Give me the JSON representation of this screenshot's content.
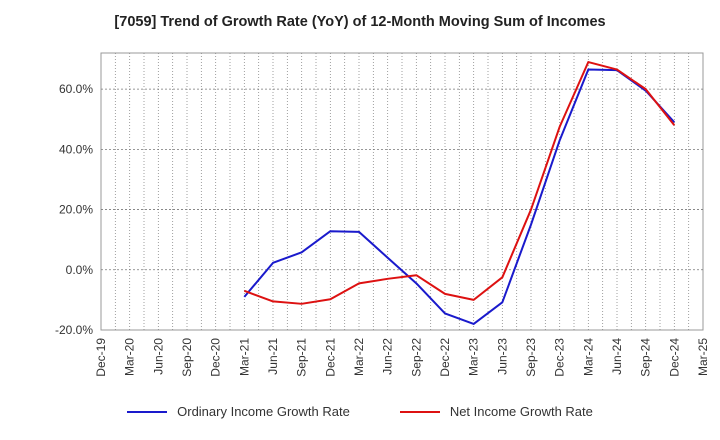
{
  "title": "[7059]  Trend of Growth Rate (YoY) of 12-Month Moving Sum of Incomes",
  "chart_data": {
    "type": "line",
    "title": "[7059]  Trend of Growth Rate (YoY) of 12-Month Moving Sum of Incomes",
    "categories": [
      "Dec-19",
      "Mar-20",
      "Jun-20",
      "Sep-20",
      "Dec-20",
      "Mar-21",
      "Jun-21",
      "Sep-21",
      "Dec-21",
      "Mar-22",
      "Jun-22",
      "Sep-22",
      "Dec-22",
      "Mar-23",
      "Jun-23",
      "Sep-23",
      "Dec-23",
      "Mar-24",
      "Jun-24",
      "Sep-24",
      "Dec-24",
      "Mar-25"
    ],
    "ylim": [
      -20,
      72
    ],
    "yticks": [
      -20,
      0,
      20,
      40,
      60
    ],
    "ytick_labels": [
      "-20.0%",
      "0.0%",
      "20.0%",
      "40.0%",
      "60.0%"
    ],
    "grid": true,
    "legend_position": "bottom",
    "series": [
      {
        "name": "Ordinary Income Growth Rate",
        "color": "#1a1acc",
        "values": [
          null,
          null,
          null,
          null,
          null,
          -9.0,
          2.3,
          5.8,
          12.8,
          12.6,
          4.0,
          -4.5,
          -14.5,
          -18.0,
          -10.8,
          15.0,
          43.0,
          66.5,
          66.3,
          59.5,
          49.0,
          null
        ]
      },
      {
        "name": "Net Income Growth Rate",
        "color": "#dd1111",
        "values": [
          null,
          null,
          null,
          null,
          null,
          -7.0,
          -10.5,
          -11.3,
          -9.8,
          -4.5,
          -3.0,
          -1.8,
          -8.0,
          -10.0,
          -2.5,
          20.0,
          47.5,
          69.0,
          66.5,
          60.0,
          48.0,
          null
        ]
      }
    ]
  }
}
